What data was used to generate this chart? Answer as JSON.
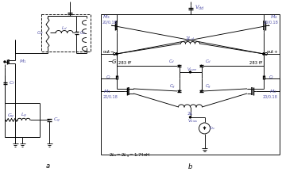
{
  "bg_color": "#ffffff",
  "line_color": "#000000",
  "blue": "#5555aa",
  "fig_width": 3.55,
  "fig_height": 2.17,
  "dpi": 100
}
